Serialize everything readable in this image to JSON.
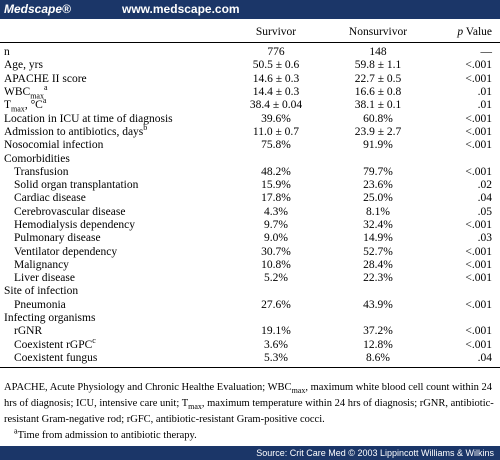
{
  "header": {
    "brand": "Medscape®",
    "url": "www.medscape.com"
  },
  "table": {
    "columns": {
      "survivor": "Survivor",
      "nonsurvivor": "Nonsurvivor",
      "p": [
        "p",
        " Value"
      ]
    },
    "rows": [
      {
        "label": "n",
        "survivor": "776",
        "nonsurvivor": "148",
        "p": "—"
      },
      {
        "label": "Age, yrs",
        "survivor": "50.5 ± 0.6",
        "nonsurvivor": "59.8 ± 1.1",
        "p": "<.001"
      },
      {
        "label": "APACHE II score",
        "survivor": "14.6 ± 0.3",
        "nonsurvivor": "22.7 ± 0.5",
        "p": "<.001"
      },
      {
        "label": [
          "WBC",
          {
            "sub": "max"
          },
          {
            "sup": "a"
          }
        ],
        "survivor": "14.4 ± 0.3",
        "nonsurvivor": "16.6 ± 0.8",
        "p": ".01"
      },
      {
        "label": [
          "T",
          {
            "sub": "max"
          },
          ", °C",
          {
            "sup": "a"
          }
        ],
        "survivor": "38.4 ± 0.04",
        "nonsurvivor": "38.1 ± 0.1",
        "p": ".01"
      },
      {
        "label": "Location in ICU at time of diagnosis",
        "survivor": "39.6%",
        "nonsurvivor": "60.8%",
        "p": "<.001"
      },
      {
        "label": [
          "Admission to antibiotics, days",
          {
            "sup": "b"
          }
        ],
        "survivor": "11.0 ± 0.7",
        "nonsurvivor": "23.9 ± 2.7",
        "p": "<.001"
      },
      {
        "label": "Nosocomial infection",
        "survivor": "75.8%",
        "nonsurvivor": "91.9%",
        "p": "<.001"
      },
      {
        "label": "Comorbidities"
      },
      {
        "label": "Transfusion",
        "indent": true,
        "survivor": "48.2%",
        "nonsurvivor": "79.7%",
        "p": "<.001"
      },
      {
        "label": "Solid organ transplantation",
        "indent": true,
        "survivor": "15.9%",
        "nonsurvivor": "23.6%",
        "p": ".02"
      },
      {
        "label": "Cardiac disease",
        "indent": true,
        "survivor": "17.8%",
        "nonsurvivor": "25.0%",
        "p": ".04"
      },
      {
        "label": "Cerebrovascular disease",
        "indent": true,
        "survivor": "4.3%",
        "nonsurvivor": "8.1%",
        "p": ".05"
      },
      {
        "label": "Hemodialysis dependency",
        "indent": true,
        "survivor": "9.7%",
        "nonsurvivor": "32.4%",
        "p": "<.001"
      },
      {
        "label": "Pulmonary disease",
        "indent": true,
        "survivor": "9.0%",
        "nonsurvivor": "14.9%",
        "p": ".03"
      },
      {
        "label": "Ventilator dependency",
        "indent": true,
        "survivor": "30.7%",
        "nonsurvivor": "52.7%",
        "p": "<.001"
      },
      {
        "label": "Malignancy",
        "indent": true,
        "survivor": "10.8%",
        "nonsurvivor": "28.4%",
        "p": "<.001"
      },
      {
        "label": "Liver disease",
        "indent": true,
        "survivor": "5.2%",
        "nonsurvivor": "22.3%",
        "p": "<.001"
      },
      {
        "label": "Site of infection"
      },
      {
        "label": "Pneumonia",
        "indent": true,
        "survivor": "27.6%",
        "nonsurvivor": "43.9%",
        "p": "<.001"
      },
      {
        "label": "Infecting organisms"
      },
      {
        "label": "rGNR",
        "indent": true,
        "survivor": "19.1%",
        "nonsurvivor": "37.2%",
        "p": "<.001"
      },
      {
        "label": [
          "Coexistent rGPC",
          {
            "sup": "c"
          }
        ],
        "indent": true,
        "survivor": "3.6%",
        "nonsurvivor": "12.8%",
        "p": "<.001"
      },
      {
        "label": "Coexistent fungus",
        "indent": true,
        "survivor": "5.3%",
        "nonsurvivor": "8.6%",
        "p": ".04"
      }
    ]
  },
  "footnotes": [
    [
      "APACHE, Acute Physiology and Chronic Healthe Evaluation; WBC",
      {
        "sub": "max"
      },
      ", maximum white blood cell count within 24 hrs of diagnosis; ICU, intensive care unit; T",
      {
        "sub": "max"
      },
      ", maximum temperature within 24 hrs of diagnosis; rGNR, antibiotic-resistant Gram-negative rod; rGFC, antibiotic-resistant Gram-positive cocci."
    ],
    [
      {
        "sup": "a"
      },
      "Time from admission to antibiotic therapy."
    ]
  ],
  "footer": {
    "source": "Source: Crit Care Med © 2003 Lippincott Williams & Wilkins"
  }
}
